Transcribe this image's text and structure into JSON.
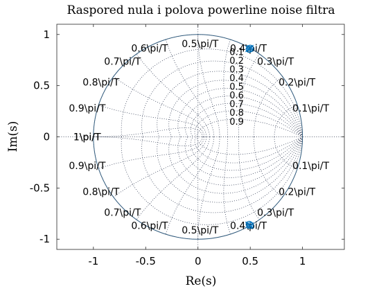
{
  "chart_data": {
    "type": "scatter",
    "title": "Raspored nula i polova powerline noise filtra",
    "xlabel": "Re(s)",
    "ylabel": "Im(s)",
    "xlim": [
      -1.35,
      1.4
    ],
    "ylim": [
      -1.1,
      1.1
    ],
    "xticks": [
      -1,
      -0.5,
      0,
      0.5,
      1
    ],
    "xtick_labels": [
      "-1",
      "-0.5",
      "0",
      "0.5",
      "1"
    ],
    "yticks": [
      -1,
      -0.5,
      0,
      0.5,
      1
    ],
    "ytick_labels": [
      "-1",
      "-0.5",
      "0",
      "0.5",
      "1"
    ],
    "grid": "zgrid",
    "unit_circle": true,
    "series": [
      {
        "marker": "o",
        "color": "#0072BD",
        "points": [
          [
            0.5,
            0.866
          ],
          [
            0.49,
            0.855
          ],
          [
            0.5,
            -0.866
          ],
          [
            0.49,
            -0.855
          ]
        ]
      },
      {
        "marker": "x",
        "color": "#0072BD",
        "points": [
          [
            0.5,
            0.866
          ],
          [
            0.485,
            0.86
          ],
          [
            0.5,
            -0.866
          ],
          [
            0.485,
            -0.86
          ]
        ]
      }
    ],
    "zeta_labels": [
      "0.1",
      "0.2",
      "0.3",
      "0.4",
      "0.5",
      "0.6",
      "0.7",
      "0.8",
      "0.9"
    ],
    "wn_labels_upper": [
      {
        "text": "0.1\\pi/T",
        "k": 1
      },
      {
        "text": "0.2\\pi/T",
        "k": 2
      },
      {
        "text": "0.3\\pi/T",
        "k": 3
      },
      {
        "text": "0.4\\pi/T",
        "k": 4
      },
      {
        "text": "0.5\\pi/T",
        "k": 5
      },
      {
        "text": "0.6\\pi/T",
        "k": 6
      },
      {
        "text": "0.7\\pi/T",
        "k": 7
      },
      {
        "text": "0.8\\pi/T",
        "k": 8
      },
      {
        "text": "0.9\\pi/T",
        "k": 9
      },
      {
        "text": "1\\pi/T",
        "k": 10
      }
    ],
    "wn_labels_lower": [
      {
        "text": "0.1\\pi/T",
        "k": 1
      },
      {
        "text": "0.2\\pi/T",
        "k": 2
      },
      {
        "text": "0.3\\pi/T",
        "k": 3
      },
      {
        "text": "0.4\\pi/T",
        "k": 4
      },
      {
        "text": "0.5\\pi/T",
        "k": 5
      },
      {
        "text": "0.6\\pi/T",
        "k": 6
      },
      {
        "text": "0.7\\pi/T",
        "k": 7
      },
      {
        "text": "0.8\\pi/T",
        "k": 8
      },
      {
        "text": "0.9\\pi/T",
        "k": 9
      },
      {
        "text": "1\\pi/T",
        "k": 10
      }
    ],
    "colors": {
      "marker": "#0072BD",
      "circle": "#315b7d",
      "grid": "#1f2a44",
      "axes": "#262626"
    }
  }
}
